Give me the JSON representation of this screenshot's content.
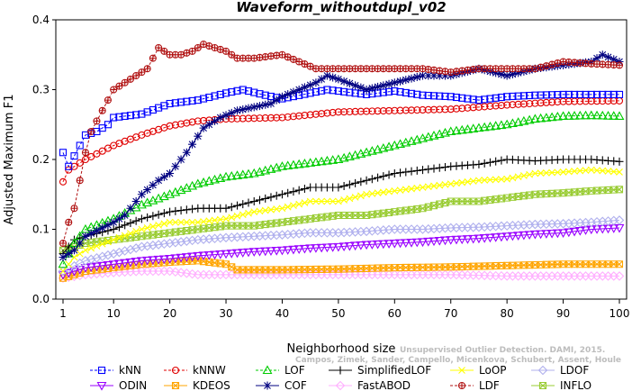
{
  "chart_data": {
    "type": "line",
    "title": "Waveform_withoutdupl_v02",
    "xlabel": "Neighborhood size",
    "ylabel": "Adjusted Maximum F1",
    "xlim": [
      1,
      100
    ],
    "ylim": [
      0.0,
      0.4
    ],
    "x_ticks": [
      "1",
      "10",
      "20",
      "30",
      "40",
      "50",
      "60",
      "70",
      "80",
      "90",
      "100"
    ],
    "y_ticks": [
      "0.0",
      "0.1",
      "0.2",
      "0.3",
      "0.4"
    ],
    "legend_position": "bottom",
    "watermark": "Campos, Zimek, Sander, Campello, Micenkova, Schubert, Assent, Houle",
    "watermark_line1": "Unsupervised Outlier Detection. DAMI, 2015.",
    "series": [
      {
        "name": "kNN",
        "color": "#0000ff",
        "marker": "square",
        "dashed": true,
        "points": [
          [
            1,
            0.21
          ],
          [
            2,
            0.19
          ],
          [
            3,
            0.205
          ],
          [
            4,
            0.22
          ],
          [
            5,
            0.235
          ],
          [
            7,
            0.24
          ],
          [
            9,
            0.25
          ],
          [
            10,
            0.26
          ],
          [
            15,
            0.265
          ],
          [
            20,
            0.28
          ],
          [
            25,
            0.285
          ],
          [
            30,
            0.295
          ],
          [
            33,
            0.3
          ],
          [
            37,
            0.292
          ],
          [
            40,
            0.287
          ],
          [
            45,
            0.295
          ],
          [
            48,
            0.3
          ],
          [
            50,
            0.298
          ],
          [
            55,
            0.293
          ],
          [
            60,
            0.298
          ],
          [
            65,
            0.292
          ],
          [
            70,
            0.29
          ],
          [
            75,
            0.285
          ],
          [
            80,
            0.29
          ],
          [
            85,
            0.292
          ],
          [
            90,
            0.293
          ],
          [
            95,
            0.293
          ],
          [
            100,
            0.293
          ]
        ]
      },
      {
        "name": "kNNW",
        "color": "#e00000",
        "marker": "circle",
        "dashed": true,
        "points": [
          [
            1,
            0.168
          ],
          [
            2,
            0.185
          ],
          [
            3,
            0.19
          ],
          [
            4,
            0.195
          ],
          [
            5,
            0.2
          ],
          [
            10,
            0.22
          ],
          [
            15,
            0.235
          ],
          [
            20,
            0.248
          ],
          [
            25,
            0.255
          ],
          [
            30,
            0.258
          ],
          [
            40,
            0.26
          ],
          [
            50,
            0.268
          ],
          [
            60,
            0.27
          ],
          [
            70,
            0.272
          ],
          [
            80,
            0.278
          ],
          [
            90,
            0.283
          ],
          [
            100,
            0.284
          ]
        ]
      },
      {
        "name": "LOF",
        "color": "#00cc00",
        "marker": "triangle-up",
        "dashed": true,
        "points": [
          [
            1,
            0.05
          ],
          [
            3,
            0.08
          ],
          [
            5,
            0.1
          ],
          [
            10,
            0.115
          ],
          [
            15,
            0.135
          ],
          [
            20,
            0.15
          ],
          [
            25,
            0.165
          ],
          [
            30,
            0.175
          ],
          [
            35,
            0.18
          ],
          [
            40,
            0.19
          ],
          [
            45,
            0.195
          ],
          [
            50,
            0.2
          ],
          [
            55,
            0.21
          ],
          [
            60,
            0.22
          ],
          [
            65,
            0.23
          ],
          [
            70,
            0.24
          ],
          [
            75,
            0.245
          ],
          [
            80,
            0.25
          ],
          [
            85,
            0.258
          ],
          [
            90,
            0.262
          ],
          [
            95,
            0.263
          ],
          [
            100,
            0.262
          ]
        ]
      },
      {
        "name": "SimplifiedLOF",
        "color": "#000000",
        "marker": "plus",
        "dashed": false,
        "points": [
          [
            1,
            0.065
          ],
          [
            3,
            0.085
          ],
          [
            5,
            0.09
          ],
          [
            10,
            0.1
          ],
          [
            15,
            0.115
          ],
          [
            20,
            0.125
          ],
          [
            25,
            0.13
          ],
          [
            30,
            0.13
          ],
          [
            35,
            0.14
          ],
          [
            40,
            0.15
          ],
          [
            45,
            0.16
          ],
          [
            50,
            0.16
          ],
          [
            55,
            0.17
          ],
          [
            60,
            0.18
          ],
          [
            65,
            0.185
          ],
          [
            70,
            0.19
          ],
          [
            75,
            0.193
          ],
          [
            80,
            0.2
          ],
          [
            85,
            0.198
          ],
          [
            90,
            0.2
          ],
          [
            95,
            0.2
          ],
          [
            100,
            0.197
          ]
        ]
      },
      {
        "name": "LoOP",
        "color": "#ffff00",
        "marker": "x",
        "dashed": false,
        "points": [
          [
            1,
            0.04
          ],
          [
            3,
            0.06
          ],
          [
            5,
            0.07
          ],
          [
            10,
            0.085
          ],
          [
            15,
            0.1
          ],
          [
            20,
            0.11
          ],
          [
            25,
            0.11
          ],
          [
            30,
            0.115
          ],
          [
            35,
            0.125
          ],
          [
            40,
            0.13
          ],
          [
            45,
            0.14
          ],
          [
            50,
            0.14
          ],
          [
            55,
            0.15
          ],
          [
            60,
            0.155
          ],
          [
            65,
            0.16
          ],
          [
            70,
            0.165
          ],
          [
            75,
            0.17
          ],
          [
            80,
            0.172
          ],
          [
            85,
            0.18
          ],
          [
            90,
            0.182
          ],
          [
            95,
            0.185
          ],
          [
            100,
            0.182
          ]
        ]
      },
      {
        "name": "LDOF",
        "color": "#b0b0ee",
        "marker": "diamond",
        "dashed": false,
        "points": [
          [
            1,
            0.04
          ],
          [
            5,
            0.055
          ],
          [
            10,
            0.065
          ],
          [
            15,
            0.075
          ],
          [
            20,
            0.08
          ],
          [
            25,
            0.085
          ],
          [
            30,
            0.088
          ],
          [
            35,
            0.09
          ],
          [
            40,
            0.092
          ],
          [
            45,
            0.095
          ],
          [
            50,
            0.095
          ],
          [
            55,
            0.097
          ],
          [
            60,
            0.1
          ],
          [
            65,
            0.1
          ],
          [
            70,
            0.102
          ],
          [
            75,
            0.103
          ],
          [
            80,
            0.105
          ],
          [
            85,
            0.107
          ],
          [
            90,
            0.108
          ],
          [
            95,
            0.11
          ],
          [
            100,
            0.113
          ]
        ]
      },
      {
        "name": "ODIN",
        "color": "#9900ff",
        "marker": "triangle-down",
        "dashed": false,
        "points": [
          [
            1,
            0.035
          ],
          [
            5,
            0.045
          ],
          [
            10,
            0.05
          ],
          [
            15,
            0.055
          ],
          [
            20,
            0.058
          ],
          [
            25,
            0.062
          ],
          [
            30,
            0.065
          ],
          [
            35,
            0.068
          ],
          [
            40,
            0.07
          ],
          [
            45,
            0.073
          ],
          [
            50,
            0.075
          ],
          [
            55,
            0.078
          ],
          [
            60,
            0.08
          ],
          [
            65,
            0.082
          ],
          [
            70,
            0.085
          ],
          [
            75,
            0.087
          ],
          [
            80,
            0.09
          ],
          [
            85,
            0.093
          ],
          [
            90,
            0.095
          ],
          [
            95,
            0.1
          ],
          [
            100,
            0.102
          ]
        ]
      },
      {
        "name": "KDEOS",
        "color": "#ffa500",
        "marker": "squarex",
        "dashed": false,
        "points": [
          [
            1,
            0.03
          ],
          [
            3,
            0.035
          ],
          [
            5,
            0.04
          ],
          [
            10,
            0.045
          ],
          [
            15,
            0.05
          ],
          [
            20,
            0.053
          ],
          [
            25,
            0.055
          ],
          [
            30,
            0.05
          ],
          [
            32,
            0.042
          ],
          [
            40,
            0.042
          ],
          [
            50,
            0.043
          ],
          [
            60,
            0.045
          ],
          [
            70,
            0.046
          ],
          [
            80,
            0.048
          ],
          [
            90,
            0.05
          ],
          [
            100,
            0.05
          ]
        ]
      },
      {
        "name": "COF",
        "color": "#000080",
        "marker": "star",
        "dashed": false,
        "points": [
          [
            1,
            0.06
          ],
          [
            3,
            0.07
          ],
          [
            5,
            0.09
          ],
          [
            10,
            0.11
          ],
          [
            12,
            0.12
          ],
          [
            15,
            0.15
          ],
          [
            18,
            0.17
          ],
          [
            20,
            0.18
          ],
          [
            23,
            0.21
          ],
          [
            26,
            0.245
          ],
          [
            29,
            0.26
          ],
          [
            32,
            0.27
          ],
          [
            35,
            0.275
          ],
          [
            38,
            0.28
          ],
          [
            40,
            0.29
          ],
          [
            43,
            0.3
          ],
          [
            46,
            0.31
          ],
          [
            48,
            0.32
          ],
          [
            50,
            0.315
          ],
          [
            55,
            0.3
          ],
          [
            60,
            0.31
          ],
          [
            65,
            0.32
          ],
          [
            70,
            0.32
          ],
          [
            75,
            0.33
          ],
          [
            80,
            0.32
          ],
          [
            85,
            0.33
          ],
          [
            90,
            0.335
          ],
          [
            95,
            0.34
          ],
          [
            97,
            0.35
          ],
          [
            100,
            0.34
          ]
        ]
      },
      {
        "name": "FastABOD",
        "color": "#ffb0ff",
        "marker": "diamond",
        "dashed": false,
        "points": [
          [
            1,
            0.03
          ],
          [
            5,
            0.035
          ],
          [
            10,
            0.038
          ],
          [
            15,
            0.04
          ],
          [
            20,
            0.04
          ],
          [
            25,
            0.035
          ],
          [
            30,
            0.035
          ],
          [
            40,
            0.035
          ],
          [
            50,
            0.035
          ],
          [
            60,
            0.035
          ],
          [
            70,
            0.035
          ],
          [
            80,
            0.033
          ],
          [
            90,
            0.033
          ],
          [
            100,
            0.033
          ]
        ]
      },
      {
        "name": "LDF",
        "color": "#b01010",
        "marker": "circleplus",
        "dashed": true,
        "points": [
          [
            1,
            0.08
          ],
          [
            2,
            0.11
          ],
          [
            3,
            0.13
          ],
          [
            4,
            0.17
          ],
          [
            5,
            0.21
          ],
          [
            6,
            0.24
          ],
          [
            8,
            0.27
          ],
          [
            10,
            0.3
          ],
          [
            12,
            0.31
          ],
          [
            14,
            0.32
          ],
          [
            16,
            0.33
          ],
          [
            18,
            0.36
          ],
          [
            20,
            0.35
          ],
          [
            22,
            0.35
          ],
          [
            24,
            0.355
          ],
          [
            26,
            0.365
          ],
          [
            28,
            0.36
          ],
          [
            30,
            0.355
          ],
          [
            32,
            0.345
          ],
          [
            35,
            0.345
          ],
          [
            38,
            0.348
          ],
          [
            40,
            0.35
          ],
          [
            43,
            0.34
          ],
          [
            46,
            0.33
          ],
          [
            50,
            0.33
          ],
          [
            55,
            0.33
          ],
          [
            60,
            0.33
          ],
          [
            65,
            0.33
          ],
          [
            70,
            0.325
          ],
          [
            75,
            0.33
          ],
          [
            80,
            0.33
          ],
          [
            85,
            0.33
          ],
          [
            90,
            0.34
          ],
          [
            95,
            0.337
          ],
          [
            100,
            0.335
          ]
        ]
      },
      {
        "name": "INFLO",
        "color": "#99cc33",
        "marker": "squarex",
        "dashed": false,
        "points": [
          [
            1,
            0.07
          ],
          [
            3,
            0.075
          ],
          [
            5,
            0.08
          ],
          [
            10,
            0.085
          ],
          [
            15,
            0.09
          ],
          [
            20,
            0.095
          ],
          [
            25,
            0.1
          ],
          [
            30,
            0.105
          ],
          [
            35,
            0.105
          ],
          [
            40,
            0.11
          ],
          [
            45,
            0.115
          ],
          [
            50,
            0.12
          ],
          [
            55,
            0.12
          ],
          [
            60,
            0.125
          ],
          [
            65,
            0.13
          ],
          [
            70,
            0.14
          ],
          [
            75,
            0.14
          ],
          [
            80,
            0.145
          ],
          [
            85,
            0.15
          ],
          [
            90,
            0.152
          ],
          [
            95,
            0.155
          ],
          [
            100,
            0.157
          ]
        ]
      }
    ],
    "legend_rows": [
      [
        "kNN",
        "kNNW",
        "LOF",
        "SimplifiedLOF",
        "LoOP",
        "LDOF"
      ],
      [
        "ODIN",
        "KDEOS",
        "COF",
        "FastABOD",
        "LDF",
        "INFLO"
      ]
    ]
  }
}
